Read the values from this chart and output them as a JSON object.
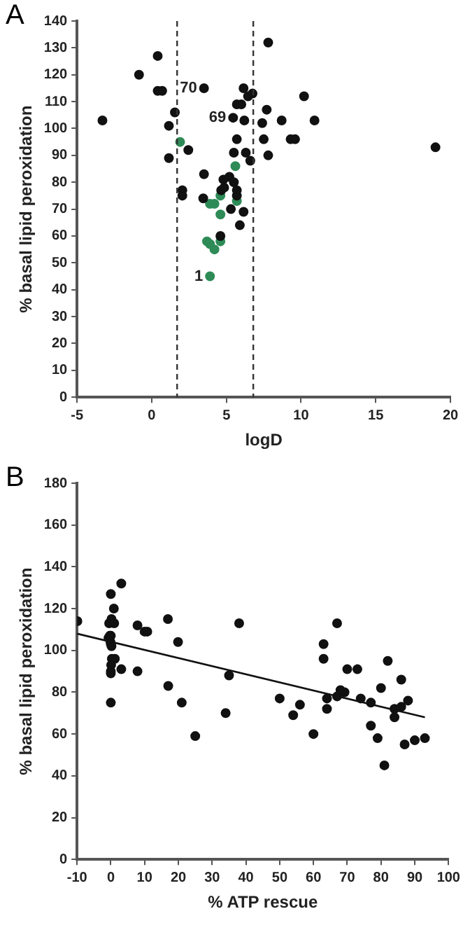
{
  "chart_data": [
    {
      "type": "scatter",
      "title": "A",
      "xlabel": "logD",
      "ylabel": "% basal lipid peroxidation",
      "xlim": [
        -5,
        20
      ],
      "xticks": [
        -5,
        0,
        5,
        10,
        15,
        20
      ],
      "ylim": [
        0,
        140
      ],
      "yticks": [
        0,
        10,
        20,
        30,
        40,
        50,
        60,
        70,
        80,
        90,
        100,
        110,
        120,
        130,
        140
      ],
      "grid": false,
      "legend": false,
      "marker": "circle",
      "series": [
        {
          "color": "#111111",
          "x": [
            -3.3,
            -0.85,
            0.4,
            0.4,
            0.7,
            1.55,
            1.15,
            1.15,
            2.05,
            2.05,
            2.45,
            3.5,
            3.5,
            3.45,
            4.6,
            4.8,
            5.2,
            5.5,
            4.65,
            4.85,
            5.7,
            5.7,
            5.3,
            6.15,
            5.9,
            5.45,
            6.2,
            5.7,
            6.0,
            6.15,
            6.45,
            6.75,
            5.7,
            5.5,
            6.3,
            6.6,
            7.8,
            7.7,
            7.4,
            7.5,
            7.8,
            8.7,
            9.3,
            9.6,
            10.2,
            10.9,
            19.0
          ],
          "values": [
            103,
            120,
            127,
            114,
            114,
            106,
            101,
            89,
            77,
            75,
            92,
            115,
            83,
            74,
            60,
            81,
            82,
            80,
            77,
            78,
            77,
            75,
            70,
            69,
            64,
            104,
            103,
            109,
            109,
            115,
            112,
            113,
            96,
            91,
            91,
            88,
            132,
            107,
            102,
            96,
            90,
            103,
            96,
            96,
            112,
            103,
            93
          ]
        },
        {
          "color": "#2e8b57",
          "x": [
            1.9,
            5.6,
            3.9,
            4.2,
            4.6,
            4.6,
            5.7,
            3.7,
            3.9,
            4.2,
            4.6,
            3.9
          ],
          "values": [
            95,
            86,
            72,
            72,
            75,
            68,
            73,
            58,
            57,
            55,
            58,
            45
          ]
        }
      ],
      "ref_lines": [
        {
          "axis": "x",
          "value": 1.7,
          "color": "#333333",
          "line_style": "dashed"
        },
        {
          "axis": "x",
          "value": 6.8,
          "color": "#333333",
          "line_style": "dashed"
        }
      ],
      "annotations": [
        {
          "text": "70",
          "x": 3.5,
          "y": 115
        },
        {
          "text": "69",
          "x": 5.45,
          "y": 104
        },
        {
          "text": "1",
          "x": 3.9,
          "y": 45
        }
      ]
    },
    {
      "type": "scatter",
      "title": "B",
      "xlabel": "% ATP rescue",
      "ylabel": "% basal lipid peroxidation",
      "xlim": [
        -10,
        100
      ],
      "xticks": [
        -10,
        0,
        10,
        20,
        30,
        40,
        50,
        60,
        70,
        80,
        90,
        100
      ],
      "ylim": [
        0,
        180
      ],
      "yticks": [
        0,
        20,
        40,
        60,
        80,
        100,
        120,
        140,
        160,
        180
      ],
      "grid": false,
      "legend": false,
      "marker": "circle",
      "series": [
        {
          "color": "#111111",
          "x": [
            -9.9,
            0,
            0.9,
            3.1,
            -0.5,
            0.2,
            1,
            -0.7,
            -0.3,
            0,
            -0.1,
            0,
            0.2,
            0.3,
            1.2,
            0.1,
            0,
            0,
            0,
            3.1,
            7.9,
            10,
            10.8,
            7.9,
            16.9,
            19.9,
            17,
            38,
            35,
            21,
            25,
            34,
            50,
            54,
            56,
            60,
            63,
            63,
            67,
            68,
            69.2,
            70,
            73,
            82,
            80,
            86,
            64,
            64,
            67,
            74,
            77,
            77,
            79,
            81,
            84,
            84,
            86,
            88,
            87,
            90,
            93
          ],
          "values": [
            114,
            127,
            120,
            132,
            113,
            115,
            113,
            106,
            107,
            107,
            104,
            103,
            102,
            96,
            96,
            93,
            90,
            89,
            75,
            91,
            112,
            109,
            109,
            90,
            115,
            104,
            83,
            113,
            88,
            75,
            59,
            70,
            77,
            69,
            74,
            60,
            103,
            96,
            113,
            81,
            80,
            91,
            91,
            95,
            82,
            86,
            77,
            72,
            78,
            77,
            75,
            64,
            58,
            45,
            68,
            72,
            73,
            76,
            55,
            57,
            58
          ]
        },
        {
          "type": "line",
          "color": "#111111",
          "marker": "none",
          "x": [
            -10,
            93
          ],
          "values": [
            108,
            68
          ]
        }
      ]
    }
  ]
}
